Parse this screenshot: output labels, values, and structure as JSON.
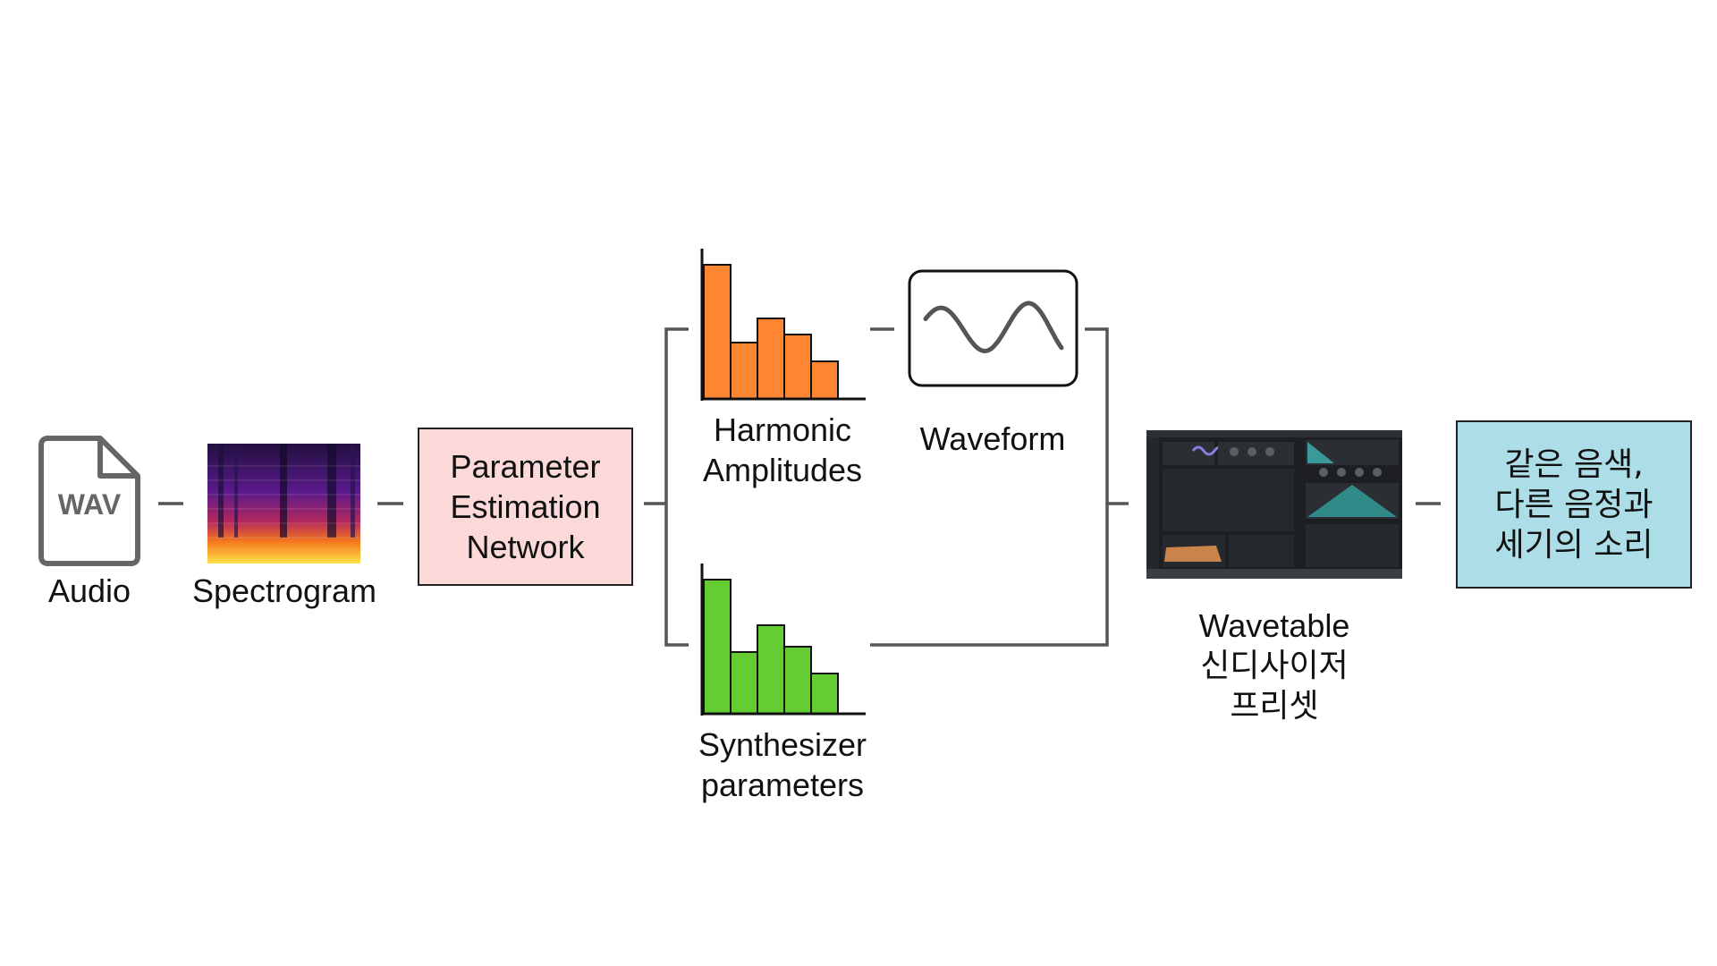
{
  "nodes": {
    "audio": {
      "icon_text": "WAV",
      "label": "Audio"
    },
    "spectrogram": {
      "label": "Spectrogram"
    },
    "network": {
      "lines": [
        "Parameter",
        "Estimation",
        "Network"
      ],
      "color": "#fcd9d9"
    },
    "harmonic": {
      "lines": [
        "Harmonic",
        "Amplitudes"
      ],
      "color": "#fe8532",
      "values": [
        1.0,
        0.42,
        0.6,
        0.48,
        0.28
      ]
    },
    "synth_params": {
      "lines": [
        "Synthesizer",
        "parameters"
      ],
      "color": "#66cc33",
      "values": [
        1.0,
        0.46,
        0.66,
        0.5,
        0.3
      ]
    },
    "waveform": {
      "label": "Waveform"
    },
    "wavetable": {
      "lines": [
        "Wavetable",
        "신디사이저",
        "프리셋"
      ]
    },
    "result": {
      "lines": [
        "같은 음색,",
        "다른 음정과",
        "세기의 소리"
      ],
      "color": "#addde6"
    }
  },
  "colors": {
    "connector": "#555555",
    "outline": "#222222"
  }
}
